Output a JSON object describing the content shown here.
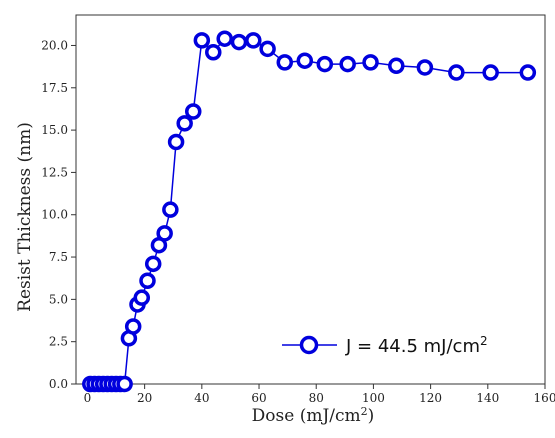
{
  "chart_data": {
    "type": "line",
    "xlabel": {
      "main": "Dose (mJ/cm",
      "sup": "2",
      "close": ")"
    },
    "ylabel": "Resist Thickness (nm)",
    "xlim": [
      -4,
      160
    ],
    "ylim": [
      0,
      21.8
    ],
    "xticks": [
      0,
      20,
      40,
      60,
      80,
      100,
      120,
      140,
      160
    ],
    "yticks": [
      0.0,
      2.5,
      5.0,
      7.5,
      10.0,
      12.5,
      15.0,
      17.5,
      20.0
    ],
    "ytick_labels": [
      "0.0",
      "2.5",
      "5.0",
      "7.5",
      "10.0",
      "12.5",
      "15.0",
      "17.5",
      "20.0"
    ],
    "xtick_labels": [
      "0",
      "20",
      "40",
      "60",
      "80",
      "100",
      "120",
      "140",
      "160"
    ],
    "grid": false,
    "legend_position": "lower-right",
    "series": [
      {
        "name": "J = 44.5 mJ/cm",
        "name_sup": "2",
        "color": "#0000dd",
        "marker": "hollow-circle",
        "x": [
          1,
          2.5,
          4,
          5.5,
          7,
          8.5,
          10,
          11.5,
          13,
          14.5,
          16,
          17.5,
          19,
          21,
          23,
          25,
          27,
          29,
          31,
          34,
          37,
          40,
          44,
          48,
          53,
          58,
          63,
          69,
          76,
          83,
          91,
          99,
          108,
          118,
          129,
          141,
          154
        ],
        "y": [
          0,
          0,
          0,
          0,
          0,
          0,
          0,
          0,
          0,
          2.7,
          3.4,
          4.7,
          5.1,
          6.1,
          7.1,
          8.2,
          8.9,
          10.3,
          14.3,
          15.4,
          16.1,
          20.3,
          19.6,
          20.4,
          20.2,
          20.3,
          19.8,
          19.0,
          19.1,
          18.9,
          18.9,
          19.0,
          18.8,
          18.7,
          18.4,
          18.4,
          18.4
        ]
      }
    ]
  }
}
